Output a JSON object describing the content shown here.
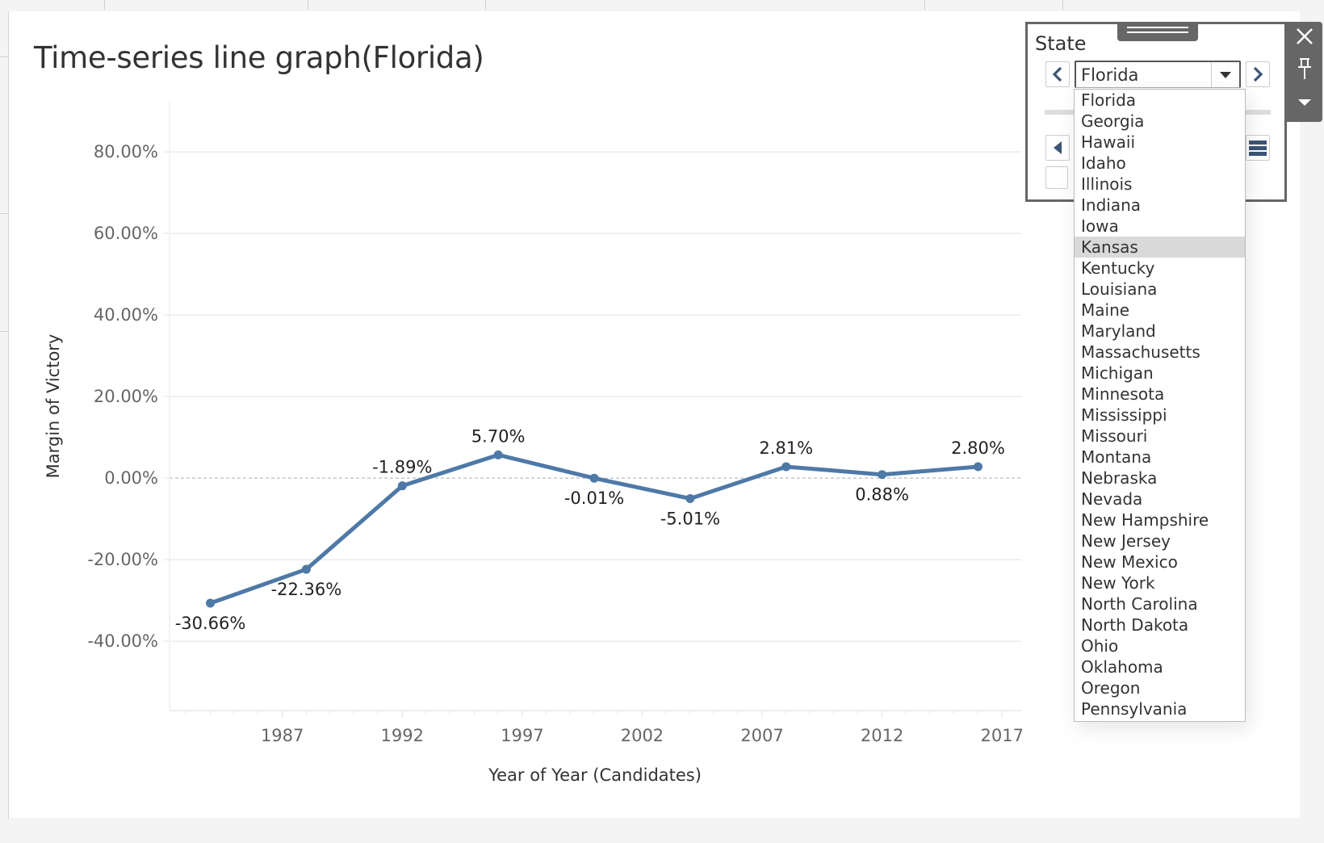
{
  "page": {
    "title": "Time-series line graph(Florida)"
  },
  "filter": {
    "title": "State",
    "selected": "Florida",
    "highlighted": "Kansas",
    "options": [
      "Florida",
      "Georgia",
      "Hawaii",
      "Idaho",
      "Illinois",
      "Indiana",
      "Iowa",
      "Kansas",
      "Kentucky",
      "Louisiana",
      "Maine",
      "Maryland",
      "Massachusetts",
      "Michigan",
      "Minnesota",
      "Mississippi",
      "Missouri",
      "Montana",
      "Nebraska",
      "Nevada",
      "New Hampshire",
      "New Jersey",
      "New Mexico",
      "New York",
      "North Carolina",
      "North Dakota",
      "Ohio",
      "Oklahoma",
      "Oregon",
      "Pennsylvania"
    ],
    "icons": {
      "prev": "chevron-left-icon",
      "next": "chevron-right-icon",
      "caret": "caret-down-icon",
      "close": "close-icon",
      "pin": "pin-icon",
      "menu": "menu-caret-icon",
      "back": "play-back-icon",
      "list": "list-icon",
      "drag": "drag-handle-icon"
    }
  },
  "colors": {
    "line": "#4e79a7",
    "grid": "#ececec",
    "zero_line": "#bdbdbd"
  },
  "chart_data": {
    "type": "line",
    "title": "Time-series line graph(Florida)",
    "xlabel": "Year of Year (Candidates)",
    "ylabel": "Margin of Victory",
    "x": [
      1984,
      1988,
      1992,
      1996,
      2000,
      2004,
      2008,
      2012,
      2016
    ],
    "series": [
      {
        "name": "Margin of Victory",
        "values": [
          -30.66,
          -22.36,
          -1.89,
          5.7,
          -0.01,
          -5.01,
          2.81,
          0.88,
          2.8
        ],
        "labels": [
          "-30.66%",
          "-22.36%",
          "-1.89%",
          "5.70%",
          "-0.01%",
          "-5.01%",
          "2.81%",
          "0.88%",
          "2.80%"
        ],
        "label_pos": [
          "below",
          "below",
          "above",
          "above",
          "below",
          "below",
          "above",
          "below",
          "above"
        ]
      }
    ],
    "x_ticks": [
      1987,
      1992,
      1997,
      2002,
      2007,
      2012,
      2017
    ],
    "x_tick_labels": [
      "1987",
      "1992",
      "1997",
      "2002",
      "2007",
      "2012",
      "2017"
    ],
    "y_ticks": [
      80,
      60,
      40,
      20,
      0,
      -20,
      -40
    ],
    "y_tick_labels": [
      "80.00%",
      "60.00%",
      "40.00%",
      "20.00%",
      "0.00%",
      "-20.00%",
      "-40.00%"
    ],
    "xlim": [
      1982.3,
      2017.8
    ],
    "ylim": [
      -57,
      92.5
    ],
    "grid": true,
    "zero_line": "dashed"
  }
}
